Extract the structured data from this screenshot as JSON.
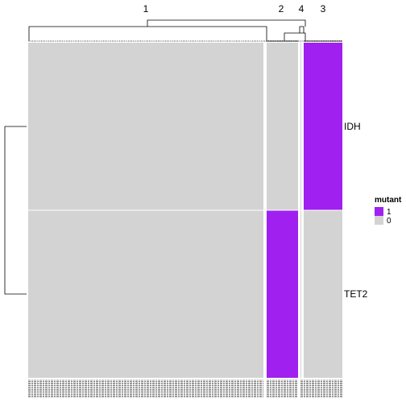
{
  "chart_data": {
    "type": "heatmap",
    "rows": [
      "IDH",
      "TET2"
    ],
    "column_clusters": [
      {
        "label": "1",
        "values": {
          "IDH": 0,
          "TET2": 0
        }
      },
      {
        "label": "2",
        "values": {
          "IDH": 0,
          "TET2": 1
        }
      },
      {
        "label": "4",
        "values": {
          "IDH": 0,
          "TET2": 0
        }
      },
      {
        "label": "3",
        "values": {
          "IDH": 1,
          "TET2": 0
        }
      }
    ],
    "legend": {
      "title": "mutant",
      "entries": [
        {
          "label": "1",
          "color": "#A020F0"
        },
        {
          "label": "0",
          "color": "#D3D3D3"
        }
      ],
      "placement": "right"
    },
    "colors": {
      "mutant": "#A020F0",
      "wildtype": "#D3D3D3"
    },
    "row_dendrogram": true,
    "column_dendrogram": true
  }
}
